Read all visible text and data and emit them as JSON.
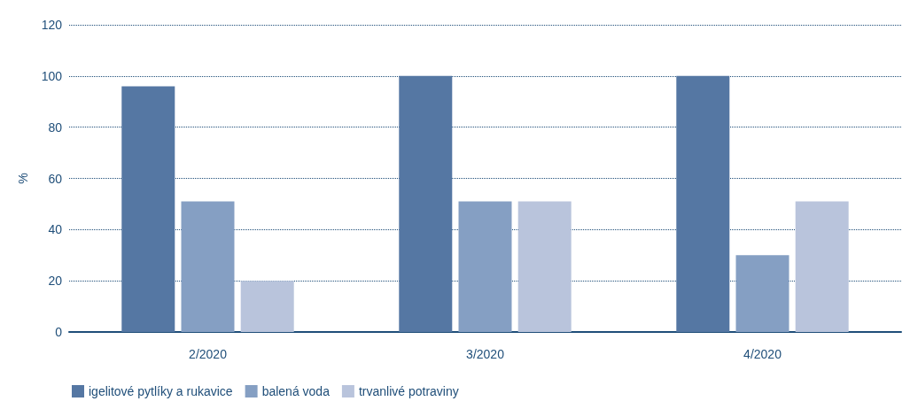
{
  "chart_data": {
    "type": "bar",
    "ylabel": "%",
    "categories": [
      "2/2020",
      "3/2020",
      "4/2020"
    ],
    "series": [
      {
        "name": "igelitové pytlíky a rukavice",
        "color": "#5577a3",
        "values": [
          96,
          100,
          100
        ]
      },
      {
        "name": "balená voda",
        "color": "#859fc3",
        "values": [
          51,
          51,
          30
        ]
      },
      {
        "name": "trvanlivé potraviny",
        "color": "#b9c4dc",
        "values": [
          20,
          51,
          51
        ]
      }
    ],
    "ylim": [
      0,
      120
    ],
    "yticks": [
      0,
      20,
      40,
      60,
      80,
      100,
      120
    ],
    "grid": "y",
    "legend": "bottom left"
  }
}
